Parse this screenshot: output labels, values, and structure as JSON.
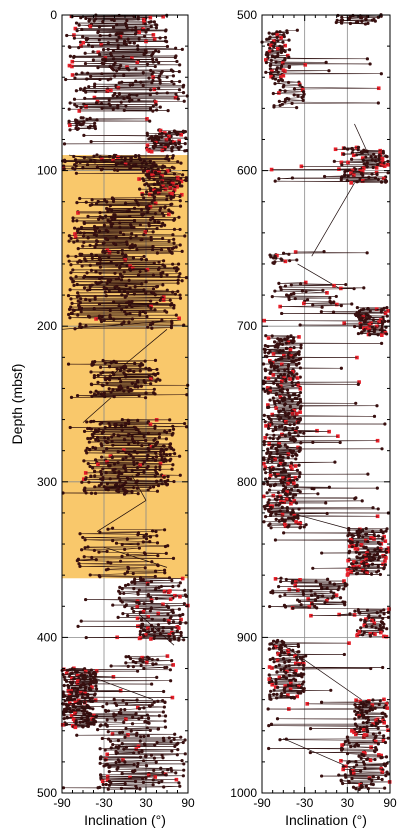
{
  "chart_data": [
    {
      "type": "scatter",
      "panel": "left",
      "title": "",
      "xlabel": "Inclination (°)",
      "ylabel": "Depth (mbsf)",
      "xlim": [
        -90,
        90
      ],
      "ylim": [
        0,
        500
      ],
      "y_inverted": true,
      "xticks": [
        "-90",
        "-30",
        "30",
        "90"
      ],
      "yticks": [
        "0",
        "100",
        "200",
        "300",
        "400",
        "500"
      ],
      "grid": true,
      "highlight_band": {
        "depth_top": 90,
        "depth_bottom": 362,
        "color": "#f9c86b"
      },
      "series": [
        {
          "color": "#3a1010",
          "marker": "dot"
        },
        {
          "color": "#e8202a",
          "marker": "square"
        }
      ],
      "clusters": [
        {
          "top": 0,
          "bottom": 18,
          "xmin": -85,
          "xmax": 60,
          "n": 90,
          "red": 0.15
        },
        {
          "top": 18,
          "bottom": 42,
          "xmin": -85,
          "xmax": 85,
          "n": 110,
          "red": 0.1
        },
        {
          "top": 42,
          "bottom": 62,
          "xmin": -80,
          "xmax": 85,
          "n": 90,
          "red": 0.12
        },
        {
          "top": 66,
          "bottom": 74,
          "xmin": -80,
          "xmax": -40,
          "n": 30,
          "red": 0.1
        },
        {
          "top": 74,
          "bottom": 88,
          "xmin": 30,
          "xmax": 88,
          "n": 80,
          "red": 0.25
        },
        {
          "top": 90,
          "bottom": 100,
          "xmin": -90,
          "xmax": 85,
          "n": 90,
          "red": 0.05
        },
        {
          "top": 100,
          "bottom": 118,
          "xmin": 20,
          "xmax": 88,
          "n": 100,
          "red": 0.25
        },
        {
          "top": 118,
          "bottom": 196,
          "xmin": -80,
          "xmax": 80,
          "n": 420,
          "red": 0.05
        },
        {
          "top": 196,
          "bottom": 202,
          "xmin": -90,
          "xmax": 85,
          "n": 20,
          "red": 0
        },
        {
          "top": 222,
          "bottom": 246,
          "xmin": -50,
          "xmax": 50,
          "n": 120,
          "red": 0.02
        },
        {
          "top": 260,
          "bottom": 308,
          "xmin": -60,
          "xmax": 70,
          "n": 280,
          "red": 0.03
        },
        {
          "top": 330,
          "bottom": 362,
          "xmin": -70,
          "xmax": 70,
          "n": 70,
          "red": 0
        },
        {
          "top": 362,
          "bottom": 392,
          "xmin": -10,
          "xmax": 88,
          "n": 100,
          "red": 0.15
        },
        {
          "top": 392,
          "bottom": 402,
          "xmin": 20,
          "xmax": 88,
          "n": 50,
          "red": 0.2
        },
        {
          "top": 412,
          "bottom": 420,
          "xmin": 0,
          "xmax": 70,
          "n": 30,
          "red": 0.2
        },
        {
          "top": 420,
          "bottom": 458,
          "xmin": -90,
          "xmax": -40,
          "n": 240,
          "red": 0.12
        },
        {
          "top": 440,
          "bottom": 462,
          "xmin": -40,
          "xmax": 60,
          "n": 60,
          "red": 0.1
        },
        {
          "top": 462,
          "bottom": 498,
          "xmin": -40,
          "xmax": 88,
          "n": 140,
          "red": 0.12
        }
      ],
      "links": [
        [
          90,
          102,
          -80,
          80
        ],
        [
          196,
          202,
          80,
          -90
        ],
        [
          202,
          232,
          60,
          -20
        ],
        [
          246,
          262,
          -20,
          -60
        ],
        [
          296,
          312,
          10,
          30
        ],
        [
          312,
          332,
          30,
          -40
        ],
        [
          342,
          355,
          -30,
          60
        ],
        [
          385,
          405,
          20,
          70
        ],
        [
          420,
          440,
          -80,
          40
        ]
      ]
    },
    {
      "type": "scatter",
      "panel": "right",
      "title": "",
      "xlabel": "Inclination (°)",
      "ylabel": "",
      "xlim": [
        -90,
        90
      ],
      "ylim": [
        500,
        1000
      ],
      "y_inverted": true,
      "xticks": [
        "-90",
        "-30",
        "30",
        "90"
      ],
      "yticks": [
        "500",
        "600",
        "700",
        "800",
        "900",
        "1000"
      ],
      "grid": true,
      "series": [
        {
          "color": "#3a1010",
          "marker": "dot"
        },
        {
          "color": "#e8202a",
          "marker": "square"
        }
      ],
      "clusters": [
        {
          "top": 500,
          "bottom": 506,
          "xmin": 10,
          "xmax": 80,
          "n": 30,
          "red": 0
        },
        {
          "top": 510,
          "bottom": 540,
          "xmin": -85,
          "xmax": -50,
          "n": 90,
          "red": 0.15
        },
        {
          "top": 540,
          "bottom": 560,
          "xmin": -80,
          "xmax": -30,
          "n": 40,
          "red": 0.12
        },
        {
          "top": 585,
          "bottom": 608,
          "xmin": 20,
          "xmax": 88,
          "n": 110,
          "red": 0.25
        },
        {
          "top": 652,
          "bottom": 660,
          "xmin": -80,
          "xmax": -40,
          "n": 20,
          "red": 0.15
        },
        {
          "top": 672,
          "bottom": 688,
          "xmin": -80,
          "xmax": 40,
          "n": 40,
          "red": 0.15
        },
        {
          "top": 688,
          "bottom": 706,
          "xmin": 40,
          "xmax": 88,
          "n": 90,
          "red": 0.2
        },
        {
          "top": 706,
          "bottom": 830,
          "xmin": -88,
          "xmax": -35,
          "n": 520,
          "red": 0.15
        },
        {
          "top": 830,
          "bottom": 860,
          "xmin": 30,
          "xmax": 88,
          "n": 150,
          "red": 0.25
        },
        {
          "top": 862,
          "bottom": 882,
          "xmin": -80,
          "xmax": 30,
          "n": 70,
          "red": 0.12
        },
        {
          "top": 882,
          "bottom": 900,
          "xmin": 40,
          "xmax": 88,
          "n": 60,
          "red": 0.25
        },
        {
          "top": 902,
          "bottom": 940,
          "xmin": -80,
          "xmax": -30,
          "n": 140,
          "red": 0.15
        },
        {
          "top": 940,
          "bottom": 960,
          "xmin": 40,
          "xmax": 88,
          "n": 90,
          "red": 0.25
        },
        {
          "top": 960,
          "bottom": 998,
          "xmin": 20,
          "xmax": 88,
          "n": 120,
          "red": 0.2
        }
      ],
      "links": [
        [
          570,
          590,
          40,
          60
        ],
        [
          608,
          655,
          40,
          -20
        ],
        [
          660,
          676,
          -40,
          20
        ],
        [
          830,
          820,
          30,
          -50
        ],
        [
          940,
          905,
          50,
          -60
        ],
        [
          965,
          985,
          -60,
          40
        ]
      ]
    }
  ]
}
